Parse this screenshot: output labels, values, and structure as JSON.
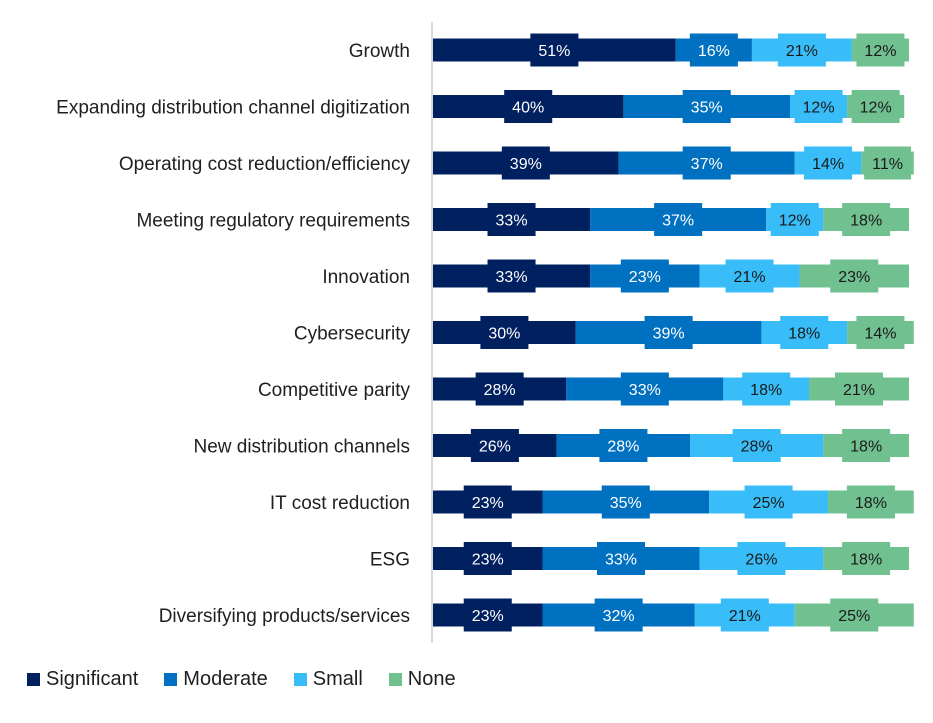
{
  "chart_data": {
    "type": "bar",
    "orientation": "horizontal",
    "stacked": true,
    "title": "",
    "xlabel": "",
    "ylabel": "",
    "xlim": [
      0,
      100
    ],
    "grid": false,
    "legend_position": "bottom-left",
    "value_suffix": "%",
    "categories": [
      "Growth",
      "Expanding distribution channel digitization",
      "Operating cost reduction/efficiency",
      "Meeting regulatory requirements",
      "Innovation",
      "Cybersecurity",
      "Competitive parity",
      "New distribution channels",
      "IT cost reduction",
      "ESG",
      "Diversifying products/services"
    ],
    "series": [
      {
        "name": "Significant",
        "color": "#002060",
        "label_color": "#ffffff",
        "values": [
          51,
          40,
          39,
          33,
          33,
          30,
          28,
          26,
          23,
          23,
          23
        ]
      },
      {
        "name": "Moderate",
        "color": "#0070C0",
        "label_color": "#ffffff",
        "values": [
          16,
          35,
          37,
          37,
          23,
          39,
          33,
          28,
          35,
          33,
          32
        ]
      },
      {
        "name": "Small",
        "color": "#38BDF8",
        "label_color": "#1a1a1a",
        "values": [
          21,
          12,
          14,
          12,
          21,
          18,
          18,
          28,
          25,
          26,
          21
        ]
      },
      {
        "name": "None",
        "color": "#70C090",
        "label_color": "#1a1a1a",
        "values": [
          12,
          12,
          11,
          18,
          23,
          14,
          21,
          18,
          18,
          18,
          25
        ]
      }
    ]
  },
  "legend": {
    "items": [
      {
        "label": "Significant",
        "color": "#002060"
      },
      {
        "label": "Moderate",
        "color": "#0070C0"
      },
      {
        "label": "Small",
        "color": "#38BDF8"
      },
      {
        "label": "None",
        "color": "#70C090"
      }
    ]
  },
  "axis_color": "#D9D9D9"
}
